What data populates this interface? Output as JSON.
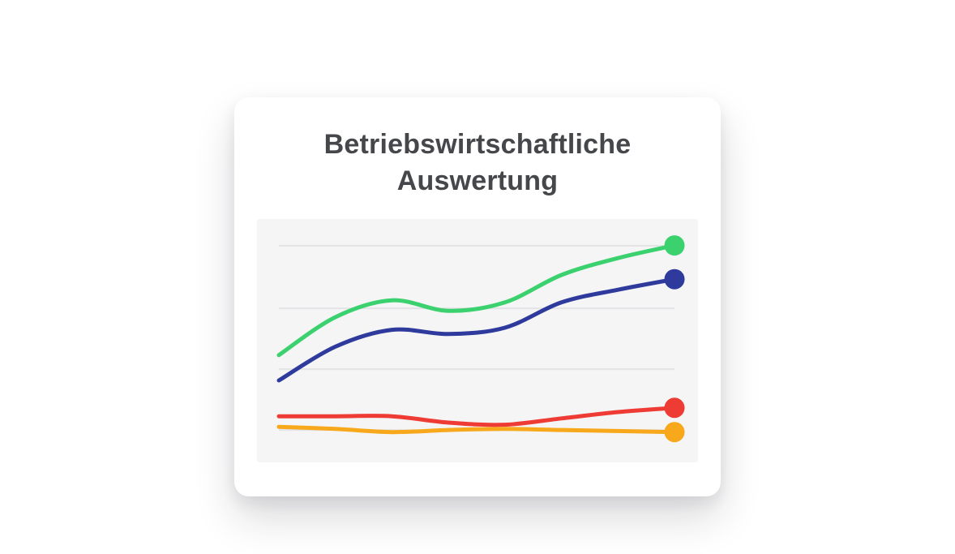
{
  "card": {
    "title": "Betriebswirtschaftliche Auswertung"
  },
  "chart_data": {
    "type": "line",
    "title": "Betriebswirtschaftliche Auswertung",
    "x": [
      1,
      2,
      3,
      4,
      5,
      6,
      7,
      8
    ],
    "x_axis_labels_visible": false,
    "y_axis_labels_visible": false,
    "legend": false,
    "grid": true,
    "gridline_count": 4,
    "ylim": [
      0,
      100
    ],
    "series": [
      {
        "name": "green",
        "color": "#3bd16e",
        "end_dot": true,
        "values": [
          42,
          60,
          68,
          63,
          67,
          80,
          88,
          94
        ]
      },
      {
        "name": "blue",
        "color": "#2e3a9c",
        "end_dot": true,
        "values": [
          30,
          46,
          54,
          52,
          55,
          67,
          73,
          78
        ]
      },
      {
        "name": "red",
        "color": "#ee3c34",
        "end_dot": true,
        "values": [
          13,
          13,
          13,
          10,
          9,
          12,
          15,
          17
        ]
      },
      {
        "name": "orange",
        "color": "#f7a81b",
        "end_dot": true,
        "values": [
          8,
          7,
          5.5,
          6.5,
          7,
          6.5,
          6,
          5.5
        ]
      }
    ]
  },
  "colors": {
    "page_background": "#ffffff",
    "card_background": "#ffffff",
    "chart_background": "#f5f5f6",
    "gridline": "#e4e4e7",
    "title_text": "#46474b"
  }
}
